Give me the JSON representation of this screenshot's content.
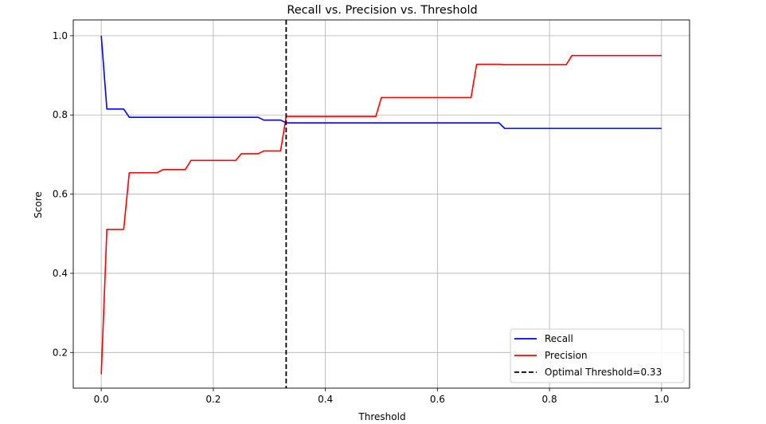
{
  "chart_data": {
    "type": "line",
    "title": "Recall vs. Precision vs. Threshold",
    "xlabel": "Threshold",
    "ylabel": "Score",
    "xlim": [
      -0.05,
      1.05
    ],
    "ylim": [
      0.11,
      1.04
    ],
    "xticks": [
      0.0,
      0.2,
      0.4,
      0.6,
      0.8,
      1.0
    ],
    "xtick_labels": [
      "0.0",
      "0.2",
      "0.4",
      "0.6",
      "0.8",
      "1.0"
    ],
    "yticks": [
      0.2,
      0.4,
      0.6,
      0.8,
      1.0
    ],
    "ytick_labels": [
      "0.2",
      "0.4",
      "0.6",
      "0.8",
      "1.0"
    ],
    "grid": true,
    "legend_position": "lower-right",
    "series": [
      {
        "name": "Recall",
        "color": "#0000ff",
        "x": [
          0.0,
          0.01,
          0.04,
          0.05,
          0.28,
          0.29,
          0.32,
          0.33,
          0.7,
          0.71,
          0.72,
          1.0
        ],
        "y": [
          1.0,
          0.815,
          0.815,
          0.794,
          0.794,
          0.787,
          0.787,
          0.78,
          0.78,
          0.78,
          0.766,
          0.766
        ]
      },
      {
        "name": "Precision",
        "color": "#ff0000",
        "x": [
          0.0,
          0.01,
          0.04,
          0.05,
          0.1,
          0.11,
          0.15,
          0.16,
          0.24,
          0.25,
          0.28,
          0.29,
          0.32,
          0.33,
          0.49,
          0.5,
          0.66,
          0.67,
          0.71,
          0.72,
          0.83,
          0.84,
          1.0
        ],
        "y": [
          0.145,
          0.511,
          0.511,
          0.654,
          0.654,
          0.662,
          0.662,
          0.685,
          0.685,
          0.702,
          0.702,
          0.709,
          0.709,
          0.796,
          0.796,
          0.844,
          0.844,
          0.928,
          0.928,
          0.927,
          0.927,
          0.95,
          0.95
        ]
      }
    ],
    "vline": {
      "name": "Optimal Threshold=0.33",
      "x": 0.33,
      "color": "#000000",
      "style": "dashed"
    }
  }
}
